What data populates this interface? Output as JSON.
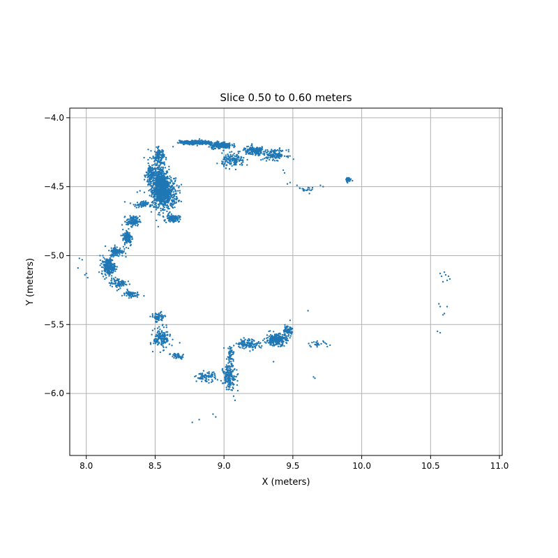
{
  "chart_data": {
    "type": "scatter",
    "title": "Slice 0.50 to 0.60 meters",
    "xlabel": "X (meters)",
    "ylabel": "Y (meters)",
    "xlim": [
      7.88,
      11.02
    ],
    "ylim": [
      -6.45,
      -3.93
    ],
    "xticks": [
      8.0,
      8.5,
      9.0,
      9.5,
      10.0,
      10.5,
      11.0
    ],
    "xtick_labels": [
      "8.0",
      "8.5",
      "9.0",
      "9.5",
      "10.0",
      "10.5",
      "11.0"
    ],
    "yticks": [
      -4.0,
      -4.5,
      -5.0,
      -5.5,
      -6.0
    ],
    "ytick_labels": [
      "−4.0",
      "−4.5",
      "−5.0",
      "−5.5",
      "−6.0"
    ],
    "grid": true,
    "marker_color": "#1f77b4",
    "series": [
      {
        "point_clusters": [
          {
            "center": [
              8.54,
              -4.5
            ],
            "spread": [
              0.05,
              0.12
            ],
            "count": 700
          },
          {
            "center": [
              8.58,
              -4.55
            ],
            "spread": [
              0.07,
              0.09
            ],
            "count": 400
          },
          {
            "center": [
              8.53,
              -4.28
            ],
            "spread": [
              0.03,
              0.05
            ],
            "count": 120
          },
          {
            "center": [
              8.47,
              -4.42
            ],
            "spread": [
              0.03,
              0.08
            ],
            "count": 150
          },
          {
            "center": [
              8.63,
              -4.73
            ],
            "spread": [
              0.04,
              0.02
            ],
            "count": 120
          },
          {
            "center": [
              8.4,
              -4.63
            ],
            "spread": [
              0.04,
              0.02
            ],
            "count": 60
          },
          {
            "center": [
              8.34,
              -4.75
            ],
            "spread": [
              0.04,
              0.03
            ],
            "count": 110
          },
          {
            "center": [
              8.3,
              -4.87
            ],
            "spread": [
              0.03,
              0.05
            ],
            "count": 110
          },
          {
            "center": [
              8.22,
              -4.97
            ],
            "spread": [
              0.04,
              0.03
            ],
            "count": 110
          },
          {
            "center": [
              8.16,
              -5.08
            ],
            "spread": [
              0.04,
              0.05
            ],
            "count": 220
          },
          {
            "center": [
              8.23,
              -5.2
            ],
            "spread": [
              0.05,
              0.03
            ],
            "count": 90
          },
          {
            "center": [
              8.32,
              -5.28
            ],
            "spread": [
              0.05,
              0.02
            ],
            "count": 60
          },
          {
            "center": [
              8.8,
              -4.18
            ],
            "spread": [
              0.1,
              0.012
            ],
            "count": 280
          },
          {
            "center": [
              8.97,
              -4.2
            ],
            "spread": [
              0.07,
              0.02
            ],
            "count": 180
          },
          {
            "center": [
              9.07,
              -4.31
            ],
            "spread": [
              0.07,
              0.04
            ],
            "count": 140
          },
          {
            "center": [
              9.22,
              -4.24
            ],
            "spread": [
              0.07,
              0.025
            ],
            "count": 180
          },
          {
            "center": [
              9.37,
              -4.27
            ],
            "spread": [
              0.07,
              0.03
            ],
            "count": 130
          },
          {
            "center": [
              9.9,
              -4.45
            ],
            "spread": [
              0.02,
              0.015
            ],
            "count": 30
          },
          {
            "center": [
              9.6,
              -4.52
            ],
            "spread": [
              0.04,
              0.015
            ],
            "count": 14
          },
          {
            "center": [
              8.52,
              -5.45
            ],
            "spread": [
              0.04,
              0.03
            ],
            "count": 70
          },
          {
            "center": [
              8.55,
              -5.6
            ],
            "spread": [
              0.05,
              0.06
            ],
            "count": 160
          },
          {
            "center": [
              8.66,
              -5.73
            ],
            "spread": [
              0.04,
              0.02
            ],
            "count": 40
          },
          {
            "center": [
              8.87,
              -5.88
            ],
            "spread": [
              0.06,
              0.03
            ],
            "count": 80
          },
          {
            "center": [
              9.04,
              -5.88
            ],
            "spread": [
              0.04,
              0.07
            ],
            "count": 160
          },
          {
            "center": [
              9.05,
              -5.72
            ],
            "spread": [
              0.02,
              0.06
            ],
            "count": 50
          },
          {
            "center": [
              9.18,
              -5.64
            ],
            "spread": [
              0.07,
              0.03
            ],
            "count": 120
          },
          {
            "center": [
              9.38,
              -5.61
            ],
            "spread": [
              0.06,
              0.035
            ],
            "count": 260
          },
          {
            "center": [
              9.46,
              -5.55
            ],
            "spread": [
              0.03,
              0.03
            ],
            "count": 80
          },
          {
            "center": [
              9.68,
              -5.64
            ],
            "spread": [
              0.05,
              0.015
            ],
            "count": 24
          }
        ],
        "points": [
          [
            7.95,
            -5.02
          ],
          [
            7.97,
            -5.03
          ],
          [
            7.94,
            -5.09
          ],
          [
            7.99,
            -5.14
          ],
          [
            8.01,
            -5.16
          ],
          [
            8.0,
            -5.13
          ],
          [
            8.1,
            -5.0
          ],
          [
            8.12,
            -5.0
          ],
          [
            8.77,
            -6.21
          ],
          [
            8.82,
            -6.19
          ],
          [
            8.92,
            -6.15
          ],
          [
            8.94,
            -6.17
          ],
          [
            9.08,
            -6.05
          ],
          [
            9.07,
            -6.02
          ],
          [
            9.1,
            -5.98
          ],
          [
            9.61,
            -5.4
          ],
          [
            9.65,
            -5.88
          ],
          [
            9.66,
            -5.89
          ],
          [
            9.75,
            -5.66
          ],
          [
            9.77,
            -5.65
          ],
          [
            9.72,
            -5.62
          ],
          [
            9.48,
            -5.47
          ],
          [
            9.36,
            -5.77
          ],
          [
            9.02,
            -5.75
          ],
          [
            9.0,
            -5.67
          ],
          [
            10.57,
            -5.13
          ],
          [
            10.58,
            -5.15
          ],
          [
            10.6,
            -5.12
          ],
          [
            10.61,
            -5.14
          ],
          [
            10.63,
            -5.15
          ],
          [
            10.59,
            -5.19
          ],
          [
            10.62,
            -5.18
          ],
          [
            10.64,
            -5.17
          ],
          [
            10.56,
            -5.35
          ],
          [
            10.57,
            -5.37
          ],
          [
            10.59,
            -5.43
          ],
          [
            10.6,
            -5.42
          ],
          [
            10.62,
            -5.37
          ],
          [
            10.55,
            -5.55
          ],
          [
            10.57,
            -5.56
          ],
          [
            9.43,
            -4.38
          ],
          [
            9.44,
            -4.4
          ],
          [
            9.46,
            -4.48
          ],
          [
            9.48,
            -4.47
          ],
          [
            9.55,
            -4.51
          ],
          [
            9.53,
            -4.49
          ],
          [
            9.58,
            -4.53
          ],
          [
            9.62,
            -4.55
          ],
          [
            9.64,
            -4.52
          ],
          [
            9.7,
            -4.49
          ],
          [
            9.72,
            -4.5
          ],
          [
            8.45,
            -4.23
          ],
          [
            8.47,
            -4.24
          ],
          [
            8.42,
            -4.29
          ],
          [
            8.39,
            -4.53
          ],
          [
            8.37,
            -4.54
          ],
          [
            8.28,
            -4.61
          ],
          [
            8.32,
            -4.62
          ],
          [
            8.58,
            -4.76
          ],
          [
            8.63,
            -4.21
          ],
          [
            8.69,
            -4.17
          ]
        ]
      }
    ]
  }
}
